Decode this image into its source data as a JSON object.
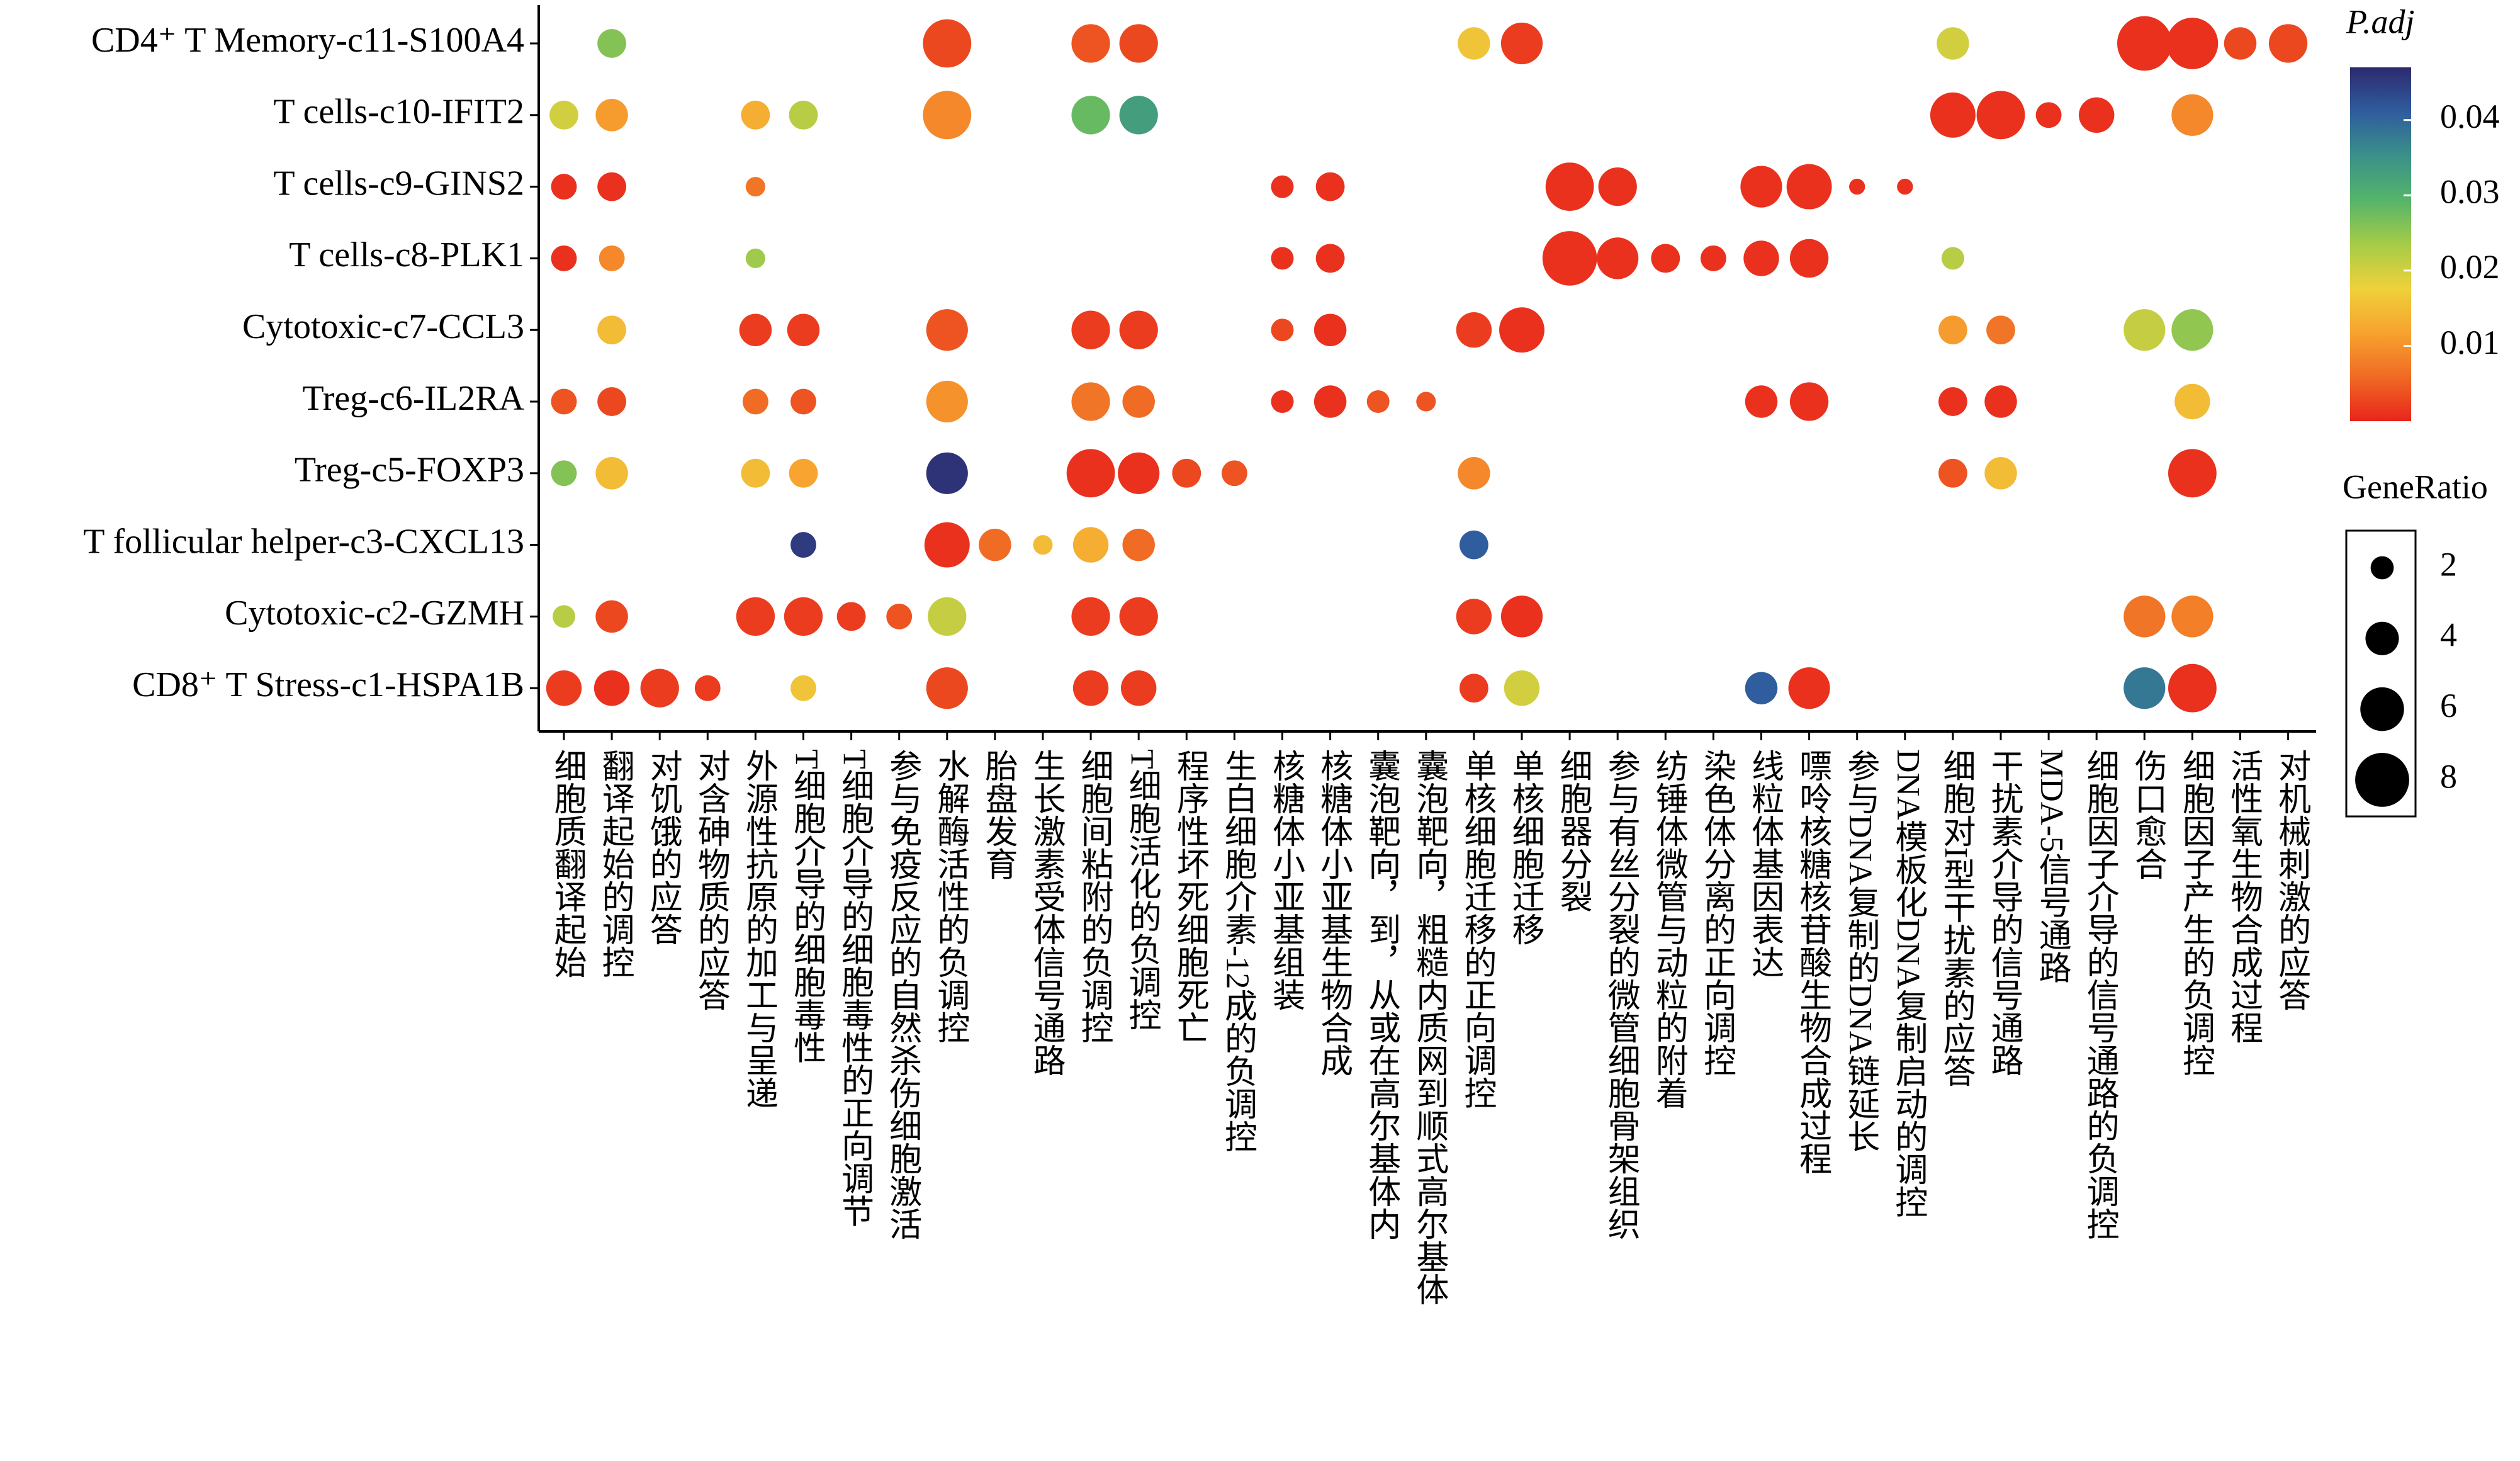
{
  "chart_data": {
    "type": "dot",
    "categories": [
      "细胞质翻译起始",
      "翻译起始的调控",
      "对饥饿的应答",
      "对含砷物质的应答",
      "外源性抗原的加工与呈递",
      "T细胞介导的细胞毒性",
      "T细胞介导的细胞毒性的正向调节",
      "参与免疫反应的自然杀伤细胞激活",
      "水解酶活性的负调控",
      "胎盘发育",
      "生长激素受体信号通路",
      "细胞间粘附的负调控",
      "T细胞活化的负调控",
      "程序性坏死细胞死亡",
      "生白细胞介素-12成的负调控",
      "核糖体小亚基组装",
      "核糖体小亚基生物合成",
      "囊泡靶向，到，从或在高尔基体内",
      "囊泡靶向，粗糙内质网到顺式高尔基体",
      "单核细胞迁移的正向调控",
      "单核细胞迁移",
      "细胞器分裂",
      "参与有丝分裂的微管细胞骨架组织",
      "纺锤体微管与动粒的附着",
      "染色体分离的正向调控",
      "线粒体基因表达",
      "嘌呤核糖核苷酸生物合成过程",
      "参与DNA复制的DNA链延长",
      "DNA模板化DNA复制启动的调控",
      "细胞对I型干扰素的应答",
      "干扰素介导的信号通路",
      "MDA-5信号通路",
      "细胞因子介导的信号通路的负调控",
      "伤口愈合",
      "细胞因子产生的负调控",
      "活性氧生物合成过程",
      "对机械刺激的应答"
    ],
    "series": [
      {
        "name": "CD4⁺ T Memory-c11-S100A4",
        "p_adj": [
          null,
          0.026,
          null,
          null,
          null,
          null,
          null,
          null,
          0.003,
          null,
          null,
          0.004,
          0.003,
          null,
          null,
          null,
          null,
          null,
          null,
          0.016,
          0.002,
          null,
          null,
          null,
          null,
          null,
          null,
          null,
          null,
          0.02,
          null,
          null,
          null,
          0.001,
          0.001,
          0.003,
          0.003
        ],
        "gene_ratio": [
          null,
          3.1,
          null,
          null,
          null,
          null,
          null,
          null,
          6.9,
          null,
          null,
          5.0,
          5.0,
          null,
          null,
          null,
          null,
          null,
          null,
          3.8,
          5.6,
          null,
          null,
          null,
          null,
          null,
          null,
          null,
          null,
          3.8,
          null,
          null,
          null,
          8.1,
          7.5,
          3.8,
          5.0
        ]
      },
      {
        "name": "T cells-c10-IFIT2",
        "p_adj": [
          0.02,
          0.011,
          null,
          null,
          0.013,
          0.022,
          null,
          null,
          0.009,
          null,
          null,
          0.028,
          0.033,
          null,
          null,
          null,
          null,
          null,
          null,
          null,
          null,
          null,
          null,
          null,
          null,
          null,
          null,
          null,
          null,
          0.001,
          0.001,
          0.001,
          0.001,
          null,
          0.009,
          null,
          null
        ],
        "gene_ratio": [
          3.1,
          3.8,
          null,
          null,
          3.1,
          3.1,
          null,
          null,
          6.9,
          null,
          null,
          5.0,
          5.0,
          null,
          null,
          null,
          null,
          null,
          null,
          null,
          null,
          null,
          null,
          null,
          null,
          null,
          null,
          null,
          null,
          6.3,
          6.9,
          2.5,
          4.4,
          null,
          5.6,
          null,
          null
        ]
      },
      {
        "name": "T cells-c9-GINS2",
        "p_adj": [
          0.001,
          0.001,
          null,
          null,
          0.007,
          null,
          null,
          null,
          null,
          null,
          null,
          null,
          null,
          null,
          null,
          0.001,
          0.001,
          null,
          null,
          null,
          null,
          0.001,
          0.001,
          null,
          null,
          0.001,
          0.001,
          0.001,
          0.001,
          null,
          null,
          null,
          null,
          null,
          null,
          null,
          null
        ],
        "gene_ratio": [
          2.5,
          3.1,
          null,
          null,
          1.3,
          null,
          null,
          null,
          null,
          null,
          null,
          null,
          null,
          null,
          null,
          1.9,
          3.1,
          null,
          null,
          null,
          null,
          6.9,
          5.0,
          null,
          null,
          5.6,
          6.3,
          0.6,
          0.6,
          null,
          null,
          null,
          null,
          null,
          null,
          null,
          null
        ]
      },
      {
        "name": "T cells-c8-PLK1",
        "p_adj": [
          0.001,
          0.009,
          null,
          null,
          0.024,
          null,
          null,
          null,
          null,
          null,
          null,
          null,
          null,
          null,
          null,
          0.001,
          0.001,
          null,
          null,
          null,
          null,
          0.001,
          0.001,
          0.001,
          0.001,
          0.001,
          0.001,
          null,
          null,
          0.022,
          null,
          null,
          null,
          null,
          null,
          null,
          null
        ],
        "gene_ratio": [
          2.5,
          2.5,
          null,
          null,
          1.3,
          null,
          null,
          null,
          null,
          null,
          null,
          null,
          null,
          null,
          null,
          1.9,
          3.1,
          null,
          null,
          null,
          null,
          8.1,
          5.6,
          3.1,
          2.5,
          4.4,
          5.0,
          null,
          null,
          1.9,
          null,
          null,
          null,
          null,
          null,
          null,
          null
        ]
      },
      {
        "name": "Cytotoxic-c7-CCL3",
        "p_adj": [
          null,
          0.015,
          null,
          null,
          0.002,
          0.002,
          null,
          null,
          0.004,
          null,
          null,
          0.002,
          0.002,
          null,
          null,
          0.003,
          0.001,
          null,
          null,
          0.002,
          0.001,
          null,
          null,
          null,
          null,
          null,
          null,
          null,
          null,
          0.011,
          0.007,
          null,
          null,
          0.021,
          0.025,
          null,
          null
        ],
        "gene_ratio": [
          null,
          3.1,
          null,
          null,
          3.8,
          3.8,
          null,
          null,
          5.6,
          null,
          null,
          5.0,
          5.0,
          null,
          null,
          1.9,
          3.8,
          null,
          null,
          4.4,
          6.3,
          null,
          null,
          null,
          null,
          null,
          null,
          null,
          null,
          3.1,
          3.1,
          null,
          null,
          5.6,
          5.6,
          null,
          null
        ]
      },
      {
        "name": "Treg-c6-IL2RA",
        "p_adj": [
          0.004,
          0.003,
          null,
          null,
          0.006,
          0.004,
          null,
          null,
          0.01,
          null,
          null,
          0.007,
          0.006,
          null,
          null,
          0.001,
          0.001,
          0.004,
          0.004,
          null,
          null,
          null,
          null,
          null,
          null,
          0.001,
          0.001,
          null,
          null,
          0.001,
          0.001,
          null,
          null,
          null,
          0.015,
          null,
          null
        ],
        "gene_ratio": [
          2.5,
          3.1,
          null,
          null,
          2.5,
          2.5,
          null,
          null,
          5.6,
          null,
          null,
          5.0,
          3.8,
          null,
          null,
          1.9,
          3.8,
          1.9,
          1.3,
          null,
          null,
          null,
          null,
          null,
          null,
          3.8,
          5.0,
          null,
          null,
          3.1,
          3.8,
          null,
          null,
          null,
          4.4,
          null,
          null
        ]
      },
      {
        "name": "Treg-c5-FOXP3",
        "p_adj": [
          0.026,
          0.015,
          null,
          null,
          0.015,
          0.012,
          null,
          null,
          0.046,
          null,
          null,
          0.001,
          0.001,
          0.003,
          0.004,
          null,
          null,
          null,
          null,
          0.009,
          null,
          null,
          null,
          null,
          null,
          null,
          null,
          null,
          null,
          0.004,
          0.015,
          null,
          null,
          null,
          0.001,
          null,
          null
        ],
        "gene_ratio": [
          2.5,
          3.8,
          null,
          null,
          3.1,
          3.1,
          null,
          null,
          5.6,
          null,
          null,
          6.9,
          5.6,
          3.1,
          2.5,
          null,
          null,
          null,
          null,
          3.8,
          null,
          null,
          null,
          null,
          null,
          null,
          null,
          null,
          null,
          3.1,
          3.8,
          null,
          null,
          null,
          6.9,
          null,
          null
        ]
      },
      {
        "name": "T follicular helper-c3-CXCL13",
        "p_adj": [
          null,
          null,
          null,
          null,
          null,
          0.045,
          null,
          null,
          0.001,
          0.006,
          0.015,
          0.013,
          0.006,
          null,
          null,
          null,
          null,
          null,
          null,
          0.041,
          null,
          null,
          null,
          null,
          null,
          null,
          null,
          null,
          null,
          null,
          null,
          null,
          null,
          null,
          null,
          null,
          null
        ],
        "gene_ratio": [
          null,
          null,
          null,
          null,
          null,
          2.5,
          null,
          null,
          6.3,
          3.8,
          1.3,
          4.4,
          3.8,
          null,
          null,
          null,
          null,
          null,
          null,
          3.1,
          null,
          null,
          null,
          null,
          null,
          null,
          null,
          null,
          null,
          null,
          null,
          null,
          null,
          null,
          null,
          null,
          null
        ]
      },
      {
        "name": "Cytotoxic-c2-GZMH",
        "p_adj": [
          0.022,
          0.003,
          null,
          null,
          0.002,
          0.002,
          0.002,
          0.004,
          0.021,
          null,
          null,
          0.002,
          0.002,
          null,
          null,
          null,
          null,
          null,
          null,
          0.002,
          0.001,
          null,
          null,
          null,
          null,
          null,
          null,
          null,
          null,
          null,
          null,
          null,
          null,
          0.007,
          0.008,
          null,
          null
        ],
        "gene_ratio": [
          1.9,
          3.8,
          null,
          null,
          5.0,
          5.0,
          3.1,
          2.5,
          5.0,
          null,
          null,
          5.0,
          5.0,
          null,
          null,
          null,
          null,
          null,
          null,
          4.4,
          5.6,
          null,
          null,
          null,
          null,
          null,
          null,
          null,
          null,
          null,
          null,
          null,
          null,
          5.6,
          5.6,
          null,
          null
        ]
      },
      {
        "name": "CD8⁺ T Stress-c1-HSPA1B",
        "p_adj": [
          0.002,
          0.001,
          0.002,
          0.002,
          null,
          0.016,
          null,
          null,
          0.003,
          null,
          null,
          0.002,
          0.002,
          null,
          null,
          null,
          null,
          null,
          null,
          0.002,
          0.02,
          null,
          null,
          null,
          null,
          0.041,
          0.001,
          null,
          null,
          null,
          null,
          null,
          null,
          0.038,
          0.001,
          null,
          null
        ],
        "gene_ratio": [
          4.4,
          4.4,
          5.0,
          2.5,
          null,
          2.5,
          null,
          null,
          5.6,
          null,
          null,
          4.4,
          4.4,
          null,
          null,
          null,
          null,
          null,
          null,
          3.1,
          4.4,
          null,
          null,
          null,
          null,
          3.8,
          5.6,
          null,
          null,
          null,
          null,
          null,
          null,
          5.6,
          6.9,
          null,
          null
        ]
      }
    ],
    "colorbar_title": "P.adj",
    "colorbar_lim": [
      0,
      0.047
    ],
    "colorbar_ticks": [
      0.01,
      0.02,
      0.03,
      0.04
    ],
    "colormap": [
      "#e8251c",
      "#f06a24",
      "#f7a32f",
      "#eed13b",
      "#a6cc48",
      "#55b46a",
      "#3a9189",
      "#2f5c9e",
      "#2d2a6e"
    ],
    "size_title": "GeneRatio",
    "size_ticks": [
      2,
      4,
      6,
      8
    ]
  }
}
